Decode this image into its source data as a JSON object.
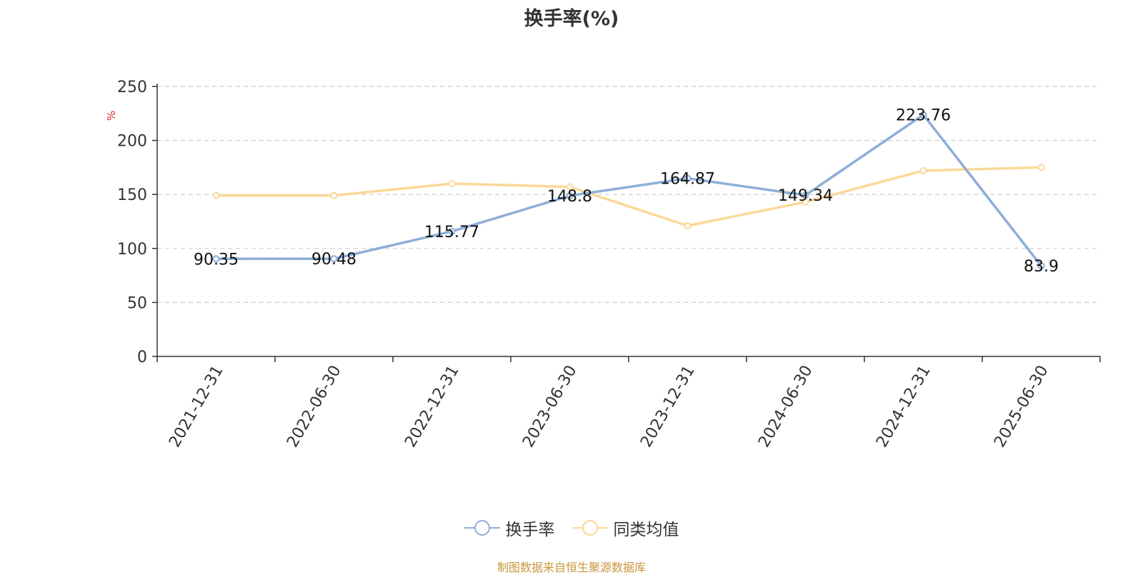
{
  "title": "换手率(%)",
  "source": "制图数据来自恒生聚源数据库",
  "chart_data": {
    "type": "line",
    "title": "换手率(%)",
    "ylabel": "%",
    "xlabel": "",
    "ylim": [
      0,
      250
    ],
    "yticks": [
      0,
      50,
      100,
      150,
      200,
      250
    ],
    "grid": true,
    "legend_position": "bottom",
    "categories": [
      "2021-12-31",
      "2022-06-30",
      "2022-12-31",
      "2023-06-30",
      "2023-12-31",
      "2024-06-30",
      "2024-12-31",
      "2025-06-30"
    ],
    "series": [
      {
        "name": "换手率",
        "color": "#8eaed8",
        "values": [
          90.35,
          90.48,
          115.77,
          148.8,
          164.87,
          149.34,
          223.76,
          83.9
        ],
        "labels": [
          "90.35",
          "90.48",
          "115.77",
          "148.8",
          "164.87",
          "149.34",
          "223.76",
          "83.9"
        ]
      },
      {
        "name": "同类均值",
        "color": "#fbd898",
        "values": [
          149,
          149,
          160,
          157,
          121,
          143,
          172,
          175
        ]
      }
    ]
  }
}
